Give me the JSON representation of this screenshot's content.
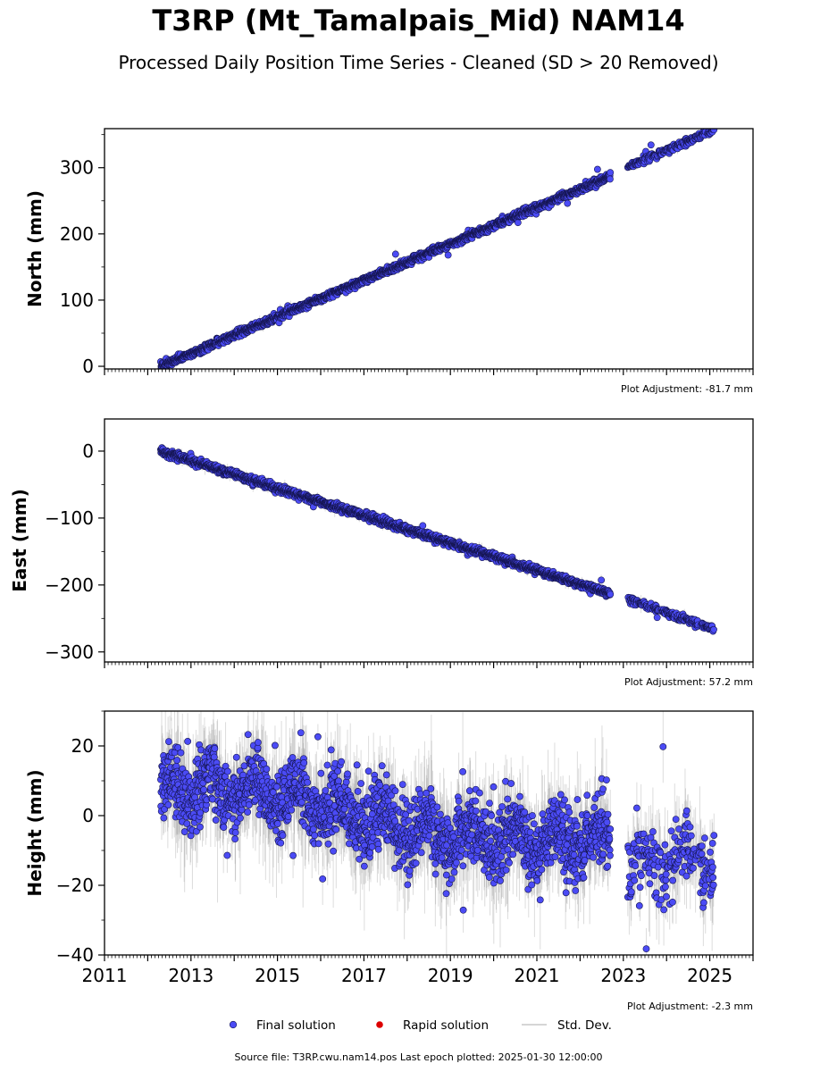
{
  "title": "T3RP (Mt_Tamalpais_Mid) NAM14",
  "subtitle": "Processed Daily Position Time Series - Cleaned (SD > 20 Removed)",
  "source_text": "Source file: T3RP.cwu.nam14.pos  Last epoch plotted: 2025-01-30 12:00:00",
  "legend": {
    "placement": "bottom-center",
    "items": [
      {
        "label": "Final solution",
        "color": "#4b4bf5"
      },
      {
        "label": "Rapid solution",
        "color": "#dd0000"
      },
      {
        "label": "Std. Dev.",
        "color": "#c8c8c8"
      }
    ]
  },
  "chart_data": [
    {
      "type": "scatter",
      "ylabel": "North (mm)",
      "xlim": [
        2011,
        2026
      ],
      "ylim": [
        -4,
        359
      ],
      "yticks": [
        0,
        100,
        200,
        300
      ],
      "xticks": [
        2011,
        2013,
        2015,
        2017,
        2019,
        2021,
        2023,
        2025
      ],
      "xtick_labels_shown": false,
      "adjustment": "Plot Adjustment: -81.7 mm",
      "series": [
        {
          "label": "Final solution",
          "color": "#4b4bf5",
          "trend": {
            "x": [
              2012.3,
              2022.7,
              2023.1,
              2025.1
            ],
            "y": [
              0,
              287,
              301,
              357
            ]
          },
          "noise_sd": 2.5,
          "error_sd": 3,
          "gap": [
            2022.7,
            2023.1
          ]
        }
      ]
    },
    {
      "type": "scatter",
      "ylabel": "East (mm)",
      "xlim": [
        2011,
        2026
      ],
      "ylim": [
        -315,
        48
      ],
      "yticks": [
        0,
        -100,
        -200,
        -300
      ],
      "xticks": [
        2011,
        2013,
        2015,
        2017,
        2019,
        2021,
        2023,
        2025
      ],
      "xtick_labels_shown": false,
      "adjustment": "Plot Adjustment: 57.2 mm",
      "series": [
        {
          "label": "Final solution",
          "color": "#4b4bf5",
          "trend": {
            "x": [
              2012.3,
              2022.7,
              2023.1,
              2025.1
            ],
            "y": [
              0,
              -213,
              -222,
              -266
            ]
          },
          "noise_sd": 2.5,
          "error_sd": 3.5,
          "gap": [
            2022.7,
            2023.1
          ]
        }
      ]
    },
    {
      "type": "scatter",
      "ylabel": "Height (mm)",
      "xlim": [
        2011,
        2026
      ],
      "ylim": [
        -40,
        30
      ],
      "yticks": [
        20,
        0,
        -20,
        -40
      ],
      "xticks": [
        2011,
        2013,
        2015,
        2017,
        2019,
        2021,
        2023,
        2025
      ],
      "xtick_labels_shown": true,
      "adjustment": "Plot Adjustment: -2.3 mm",
      "series": [
        {
          "label": "Final solution",
          "color": "#4b4bf5",
          "trend": {
            "x": [
              2012.3,
              2014.5,
              2016.0,
              2018.0,
              2020.0,
              2022.7,
              2023.1,
              2025.1
            ],
            "y": [
              8,
              8,
              3,
              -4,
              -6,
              -7,
              -15,
              -13
            ]
          },
          "seasonal_amplitude": 4,
          "noise_sd": 5,
          "error_sd": 7,
          "gap": [
            2022.7,
            2023.1
          ]
        }
      ]
    }
  ]
}
